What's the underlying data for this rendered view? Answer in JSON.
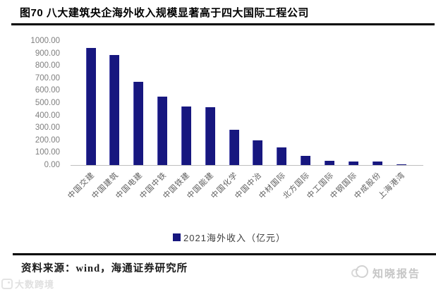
{
  "title": "图70 八大建筑央企海外收入规模显著高于四大国际工程公司",
  "chart_data": {
    "type": "bar",
    "categories": [
      "中国交建",
      "中国建筑",
      "中国电建",
      "中国中铁",
      "中国铁建",
      "中国能建",
      "中国化学",
      "中国中冶",
      "中材国际",
      "北方国际",
      "中工国际",
      "中钢国际",
      "中成股份",
      "上海港湾"
    ],
    "values": [
      945,
      885,
      670,
      550,
      470,
      465,
      285,
      200,
      140,
      75,
      36,
      31,
      26,
      8
    ],
    "series_name": "2021海外收入（亿元）",
    "title": "",
    "xlabel": "",
    "ylabel": "",
    "ylim": [
      0,
      1000
    ],
    "ytick_step": 100,
    "ytick_labels": [
      "1000.00",
      "900.00",
      "800.00",
      "700.00",
      "600.00",
      "500.00",
      "400.00",
      "300.00",
      "200.00",
      "100.00",
      "0.00"
    ],
    "grid": false,
    "legend_position": "bottom",
    "bar_color": "#17177f"
  },
  "legend": {
    "label": "2021海外收入（亿元）"
  },
  "footer": {
    "source": "资料来源：wind，海通证券研究所"
  },
  "watermarks": {
    "bottom_left": "大数跨境",
    "right": "知晓报告"
  },
  "colors": {
    "bar": "#17177f",
    "axis_text": "#7f7f7f",
    "category_text": "#606060",
    "rule": "#000000",
    "baseline": "#bfbfbf"
  }
}
